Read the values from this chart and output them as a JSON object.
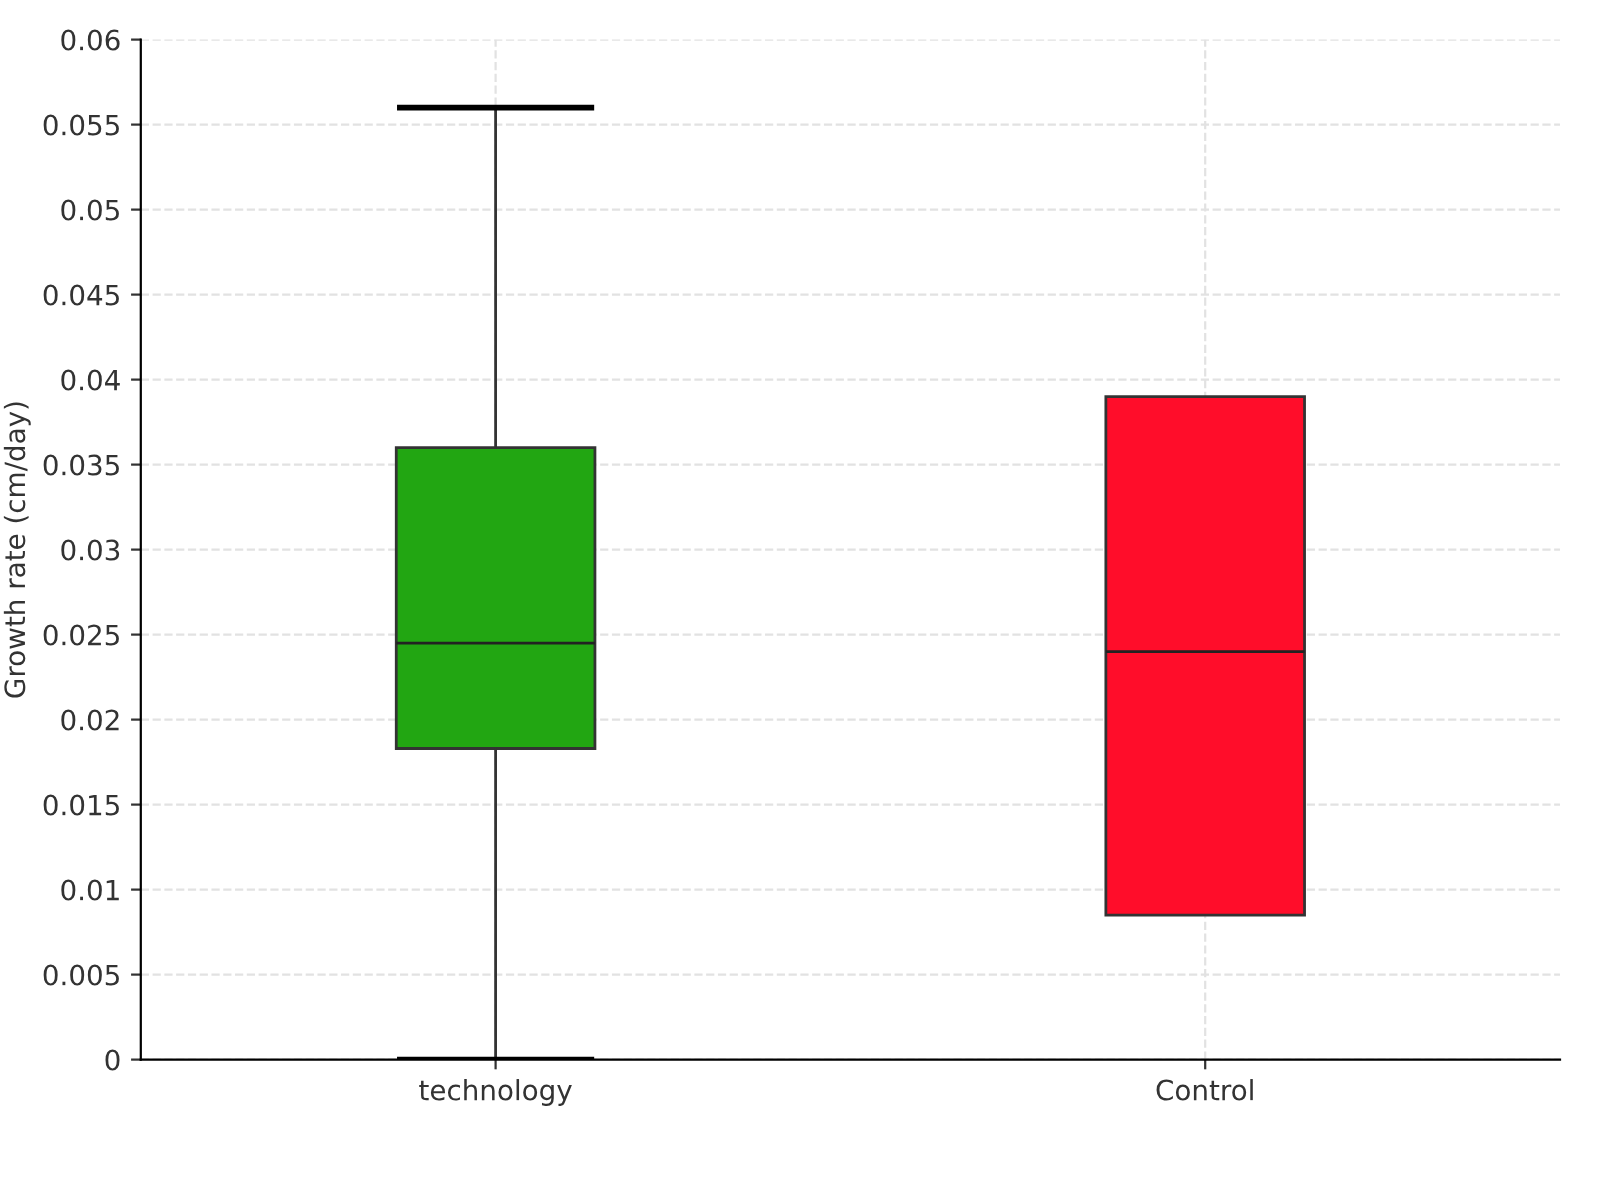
{
  "chart_data": {
    "type": "box",
    "ylabel": "Growth rate (cm/day)",
    "categories": [
      "technology",
      "Control"
    ],
    "boxes": [
      {
        "low": 0,
        "q1": 0.0183,
        "median": 0.0245,
        "q3": 0.036,
        "high": 0.056
      },
      {
        "low": 0.0085,
        "q1": 0.0085,
        "median": 0.024,
        "q3": 0.039,
        "high": 0.039
      }
    ],
    "colors": [
      "#22a612",
      "#ff0d2a"
    ],
    "ylim": [
      0,
      0.06
    ],
    "yticks": [
      0,
      0.005,
      0.01,
      0.015,
      0.02,
      0.025,
      0.03,
      0.035,
      0.04,
      0.045,
      0.05,
      0.055,
      0.06
    ],
    "grid": true
  }
}
